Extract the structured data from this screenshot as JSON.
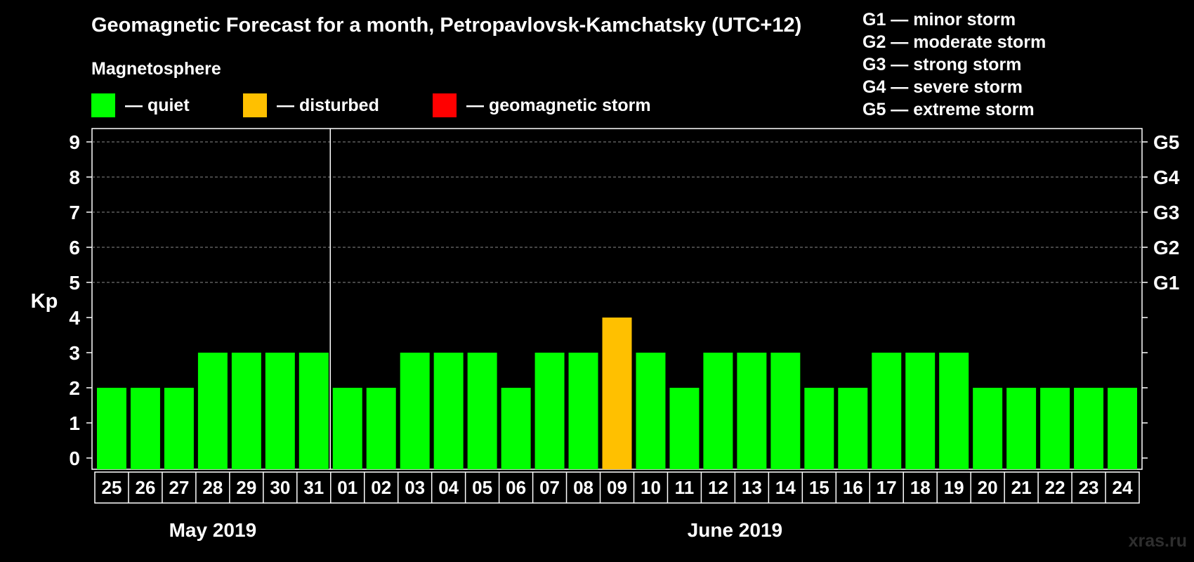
{
  "title": "Geomagnetic Forecast for a month, Petropavlovsk-Kamchatsky (UTC+12)",
  "legend": {
    "heading": "Magnetosphere",
    "items": [
      {
        "label": "— quiet",
        "color": "#00ff00"
      },
      {
        "label": "— disturbed",
        "color": "#ffc000"
      },
      {
        "label": "— geomagnetic storm",
        "color": "#ff0000"
      }
    ]
  },
  "storm_scale": [
    "G1 — minor storm",
    "G2 — moderate storm",
    "G3 — strong storm",
    "G4 — severe storm",
    "G5 — extreme storm"
  ],
  "watermark": "xras.ru",
  "chart_data": {
    "type": "bar",
    "title": "Geomagnetic Forecast for a month, Petropavlovsk-Kamchatsky (UTC+12)",
    "ylabel": "Kp",
    "ylim": [
      0,
      9
    ],
    "yticks": [
      0,
      1,
      2,
      3,
      4,
      5,
      6,
      7,
      8,
      9
    ],
    "g_levels": [
      {
        "kp": 5,
        "label": "G1"
      },
      {
        "kp": 6,
        "label": "G2"
      },
      {
        "kp": 7,
        "label": "G3"
      },
      {
        "kp": 8,
        "label": "G4"
      },
      {
        "kp": 9,
        "label": "G5"
      }
    ],
    "categories": [
      "25",
      "26",
      "27",
      "28",
      "29",
      "30",
      "31",
      "01",
      "02",
      "03",
      "04",
      "05",
      "06",
      "07",
      "08",
      "09",
      "10",
      "11",
      "12",
      "13",
      "14",
      "15",
      "16",
      "17",
      "18",
      "19",
      "20",
      "21",
      "22",
      "23",
      "24"
    ],
    "values": [
      2,
      2,
      2,
      3,
      3,
      3,
      3,
      2,
      2,
      3,
      3,
      3,
      2,
      3,
      3,
      4,
      3,
      2,
      3,
      3,
      3,
      2,
      2,
      3,
      3,
      3,
      2,
      2,
      2,
      2,
      2
    ],
    "status": [
      "quiet",
      "quiet",
      "quiet",
      "quiet",
      "quiet",
      "quiet",
      "quiet",
      "quiet",
      "quiet",
      "quiet",
      "quiet",
      "quiet",
      "quiet",
      "quiet",
      "quiet",
      "disturbed",
      "quiet",
      "quiet",
      "quiet",
      "quiet",
      "quiet",
      "quiet",
      "quiet",
      "quiet",
      "quiet",
      "quiet",
      "quiet",
      "quiet",
      "quiet",
      "quiet",
      "quiet"
    ],
    "status_colors": {
      "quiet": "#00ff00",
      "disturbed": "#ffc000",
      "storm": "#ff0000"
    },
    "months": [
      {
        "label": "May 2019",
        "count": 7
      },
      {
        "label": "June 2019",
        "count": 24
      }
    ]
  }
}
